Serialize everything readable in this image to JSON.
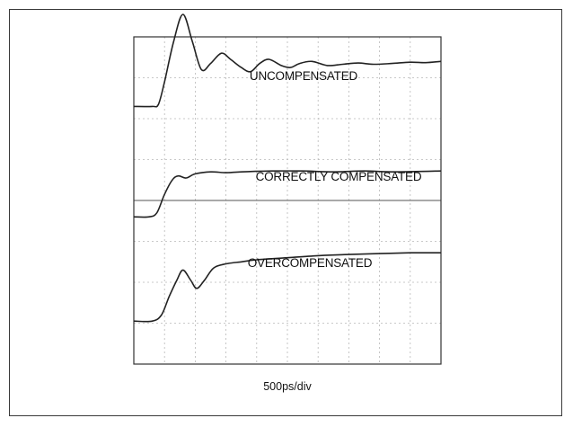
{
  "chart_data": {
    "type": "line",
    "title": "",
    "xlabel": "500ps/div",
    "ylabel": "",
    "grid": true,
    "time_per_div_ps": 500,
    "divisions": {
      "x": 10,
      "y": 8
    },
    "units": "divisions",
    "xlim": [
      0,
      10
    ],
    "ylim": [
      0,
      8
    ],
    "series": [
      {
        "name": "UNCOMPENSATED",
        "points": [
          [
            0,
            6.3
          ],
          [
            0.6,
            6.3
          ],
          [
            0.8,
            6.35
          ],
          [
            1.0,
            6.9
          ],
          [
            1.3,
            7.9
          ],
          [
            1.6,
            8.55
          ],
          [
            1.9,
            7.9
          ],
          [
            2.2,
            7.2
          ],
          [
            2.5,
            7.35
          ],
          [
            2.85,
            7.6
          ],
          [
            3.15,
            7.45
          ],
          [
            3.5,
            7.25
          ],
          [
            3.8,
            7.15
          ],
          [
            4.1,
            7.35
          ],
          [
            4.4,
            7.45
          ],
          [
            4.8,
            7.3
          ],
          [
            5.1,
            7.25
          ],
          [
            5.4,
            7.35
          ],
          [
            5.8,
            7.4
          ],
          [
            6.3,
            7.3
          ],
          [
            6.8,
            7.33
          ],
          [
            7.3,
            7.36
          ],
          [
            7.8,
            7.33
          ],
          [
            8.4,
            7.35
          ],
          [
            9.0,
            7.38
          ],
          [
            9.5,
            7.37
          ],
          [
            10,
            7.4
          ]
        ]
      },
      {
        "name": "CORRECTLY COMPENSATED",
        "points": [
          [
            0,
            3.6
          ],
          [
            0.5,
            3.6
          ],
          [
            0.75,
            3.7
          ],
          [
            1.0,
            4.15
          ],
          [
            1.25,
            4.5
          ],
          [
            1.45,
            4.6
          ],
          [
            1.7,
            4.55
          ],
          [
            2.0,
            4.65
          ],
          [
            2.5,
            4.7
          ],
          [
            3.0,
            4.68
          ],
          [
            3.5,
            4.7
          ],
          [
            4.5,
            4.72
          ],
          [
            5.5,
            4.72
          ],
          [
            6.5,
            4.7
          ],
          [
            7.5,
            4.72
          ],
          [
            8.5,
            4.7
          ],
          [
            10,
            4.72
          ]
        ]
      },
      {
        "name": "OVERCOMPENSATED",
        "points": [
          [
            0,
            1.05
          ],
          [
            0.6,
            1.05
          ],
          [
            0.9,
            1.2
          ],
          [
            1.15,
            1.65
          ],
          [
            1.4,
            2.05
          ],
          [
            1.6,
            2.3
          ],
          [
            1.85,
            2.05
          ],
          [
            2.05,
            1.85
          ],
          [
            2.3,
            2.05
          ],
          [
            2.6,
            2.35
          ],
          [
            3.0,
            2.45
          ],
          [
            3.5,
            2.5
          ],
          [
            4.0,
            2.55
          ],
          [
            5.0,
            2.6
          ],
          [
            6.0,
            2.65
          ],
          [
            7.0,
            2.68
          ],
          [
            8.0,
            2.7
          ],
          [
            9.0,
            2.72
          ],
          [
            10,
            2.72
          ]
        ]
      }
    ]
  }
}
